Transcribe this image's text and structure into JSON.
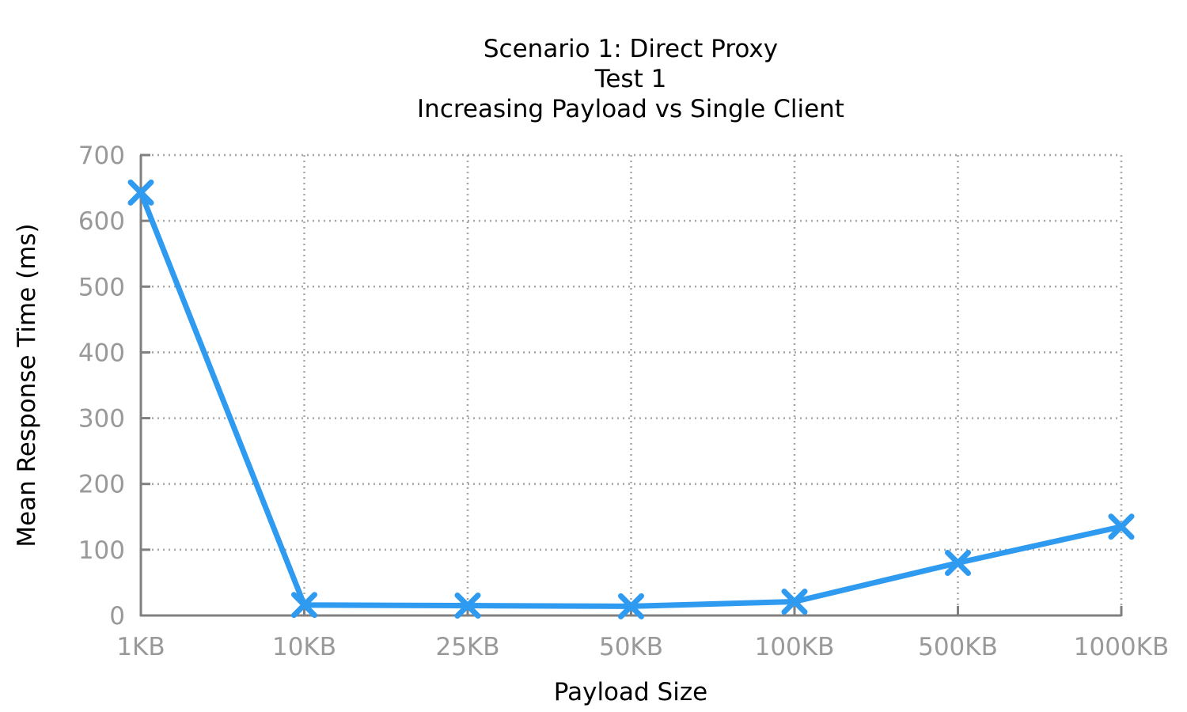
{
  "chart_data": {
    "type": "line",
    "title_lines": [
      "Scenario 1: Direct Proxy",
      "Test 1",
      "Increasing Payload vs Single Client"
    ],
    "xlabel": "Payload Size",
    "ylabel": "Mean Response Time (ms)",
    "categories": [
      "1KB",
      "10KB",
      "25KB",
      "50KB",
      "100KB",
      "500KB",
      "1000KB"
    ],
    "ylim": [
      0,
      700
    ],
    "yticks": [
      0,
      100,
      200,
      300,
      400,
      500,
      600,
      700
    ],
    "grid": true,
    "series": [
      {
        "values": [
          643,
          16,
          15,
          14,
          21,
          80,
          135
        ],
        "color": "#2e9af0",
        "marker": "x"
      }
    ]
  }
}
